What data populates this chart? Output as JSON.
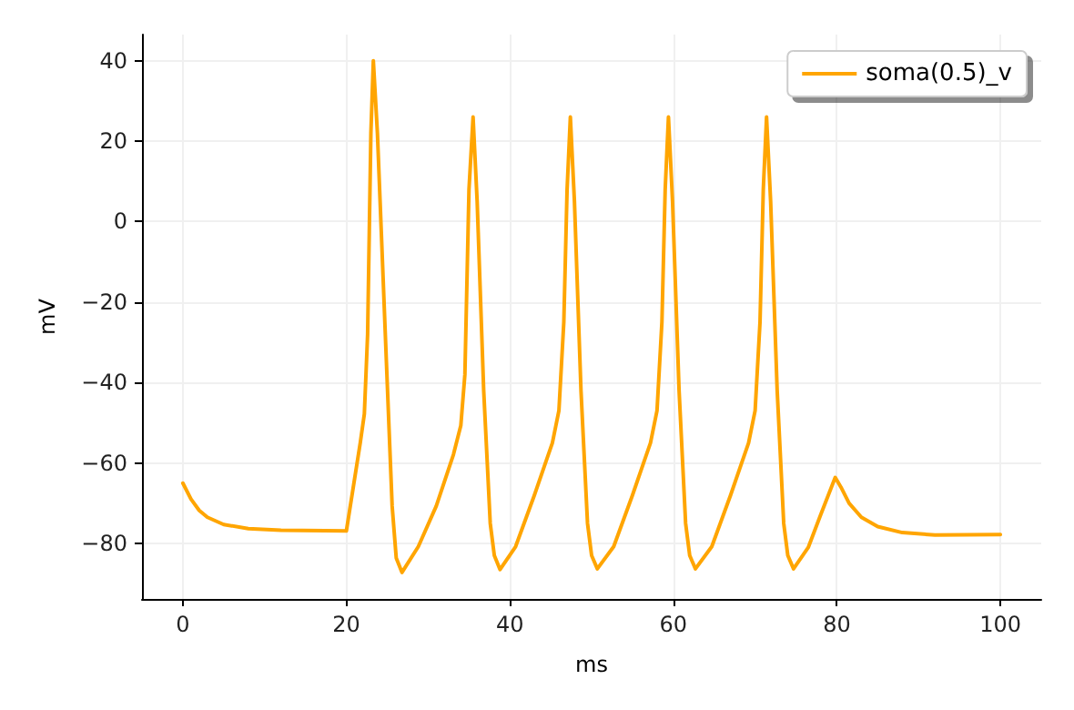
{
  "chart_data": {
    "type": "line",
    "xlabel": "ms",
    "ylabel": "mV",
    "xlim": [
      -5,
      105
    ],
    "ylim": [
      -93.8,
      46.5
    ],
    "xticks": [
      0,
      20,
      40,
      60,
      80,
      100
    ],
    "yticks": [
      -80,
      -60,
      -40,
      -20,
      0,
      20,
      40
    ],
    "grid": true,
    "legend": "top right",
    "marker": "none",
    "line_style": "solid",
    "series": [
      {
        "name": "soma(0.5)_v",
        "color": "#ffa500",
        "x": [
          0,
          1,
          2,
          3,
          5,
          8,
          12,
          20,
          21.7,
          22.2,
          22.6,
          23,
          23.3,
          23.8,
          24.9,
          25.6,
          26.1,
          26.8,
          28.8,
          31,
          33.1,
          34,
          34.5,
          35,
          35.5,
          36,
          36.8,
          37.6,
          38.1,
          38.8,
          40.7,
          43,
          45.2,
          46,
          46.6,
          47,
          47.4,
          47.9,
          48.7,
          49.5,
          50,
          50.7,
          52.7,
          55,
          57.2,
          58,
          58.6,
          59,
          59.4,
          59.9,
          60.7,
          61.5,
          62,
          62.7,
          64.7,
          67,
          69.2,
          70,
          70.6,
          71,
          71.4,
          71.9,
          72.7,
          73.5,
          74,
          74.7,
          76.5,
          78,
          79.8,
          80.5,
          81.5,
          83,
          85,
          88,
          92,
          100
        ],
        "values": [
          -65,
          -69,
          -71.8,
          -73.5,
          -75.3,
          -76.3,
          -76.7,
          -76.9,
          -55,
          -47.8,
          -28,
          22,
          40,
          22,
          -35,
          -70.7,
          -83.6,
          -87.2,
          -80.8,
          -70.7,
          -57.9,
          -50.7,
          -38,
          8,
          26,
          5,
          -42,
          -75,
          -83,
          -86.5,
          -80.8,
          -68,
          -55,
          -47,
          -25,
          8,
          26,
          5,
          -42,
          -75,
          -83,
          -86.3,
          -80.8,
          -68,
          -55,
          -47,
          -25,
          8,
          26,
          5,
          -42,
          -75,
          -83,
          -86.3,
          -80.8,
          -68,
          -55,
          -47,
          -25,
          8,
          26,
          5,
          -42,
          -75,
          -83,
          -86.3,
          -81,
          -73,
          -63.6,
          -66,
          -70,
          -73.5,
          -75.8,
          -77.3,
          -77.9,
          -77.8
        ]
      }
    ]
  }
}
